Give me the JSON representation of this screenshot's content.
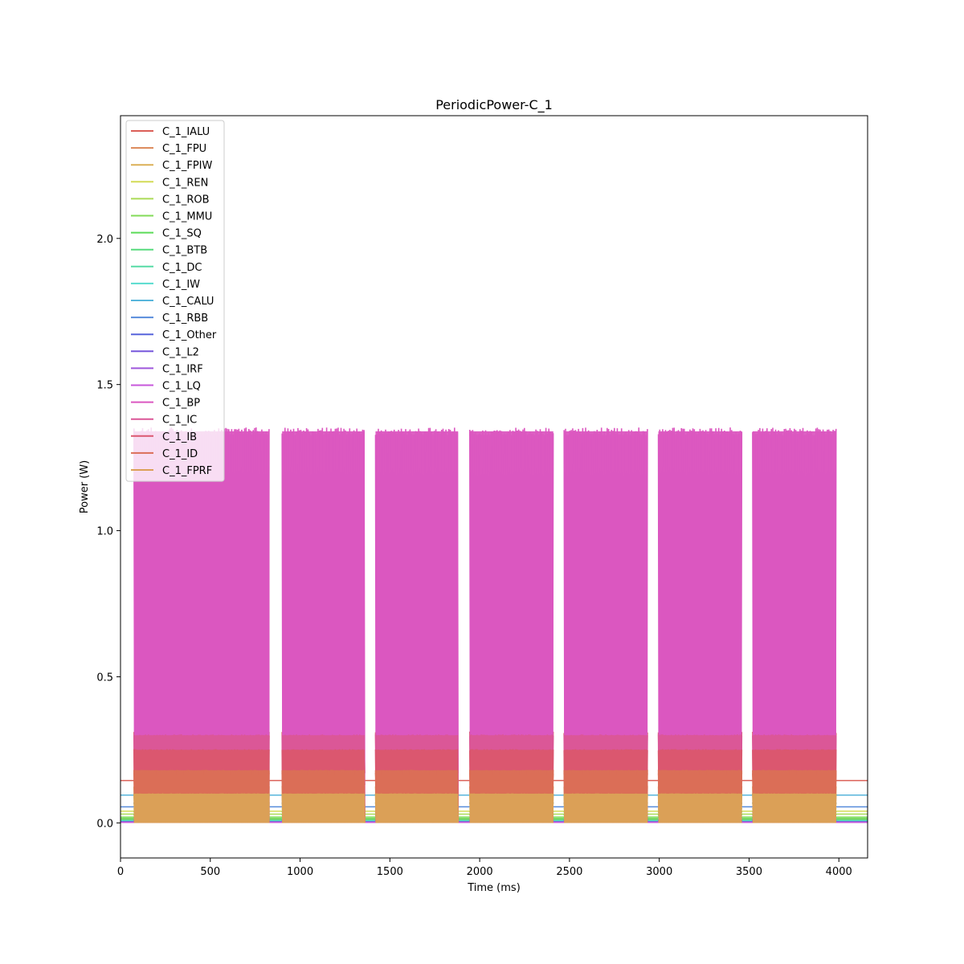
{
  "chart_data": {
    "type": "line",
    "title": "PeriodicPower-C_1",
    "xlabel": "Time (ms)",
    "ylabel": "Power (W)",
    "xlim": [
      0,
      4160
    ],
    "ylim": [
      -0.12,
      2.42
    ],
    "xticks": [
      0,
      500,
      1000,
      1500,
      2000,
      2500,
      3000,
      3500,
      4000
    ],
    "yticks": [
      0.0,
      0.5,
      1.0,
      1.5,
      2.0
    ],
    "grid": false,
    "legend_position": "upper-left",
    "active_intervals": [
      [
        75,
        830
      ],
      [
        900,
        1360
      ],
      [
        1420,
        1880
      ],
      [
        1945,
        2410
      ],
      [
        2470,
        2935
      ],
      [
        2995,
        3460
      ],
      [
        3520,
        3985
      ]
    ],
    "series": [
      {
        "name": "C_1_IALU",
        "color": "#db5f57",
        "idle": 0.145,
        "active_base": 0.17,
        "active_peak": 0.31
      },
      {
        "name": "C_1_FPU",
        "color": "#db8757",
        "idle": 0.005,
        "active_base": 0.13,
        "active_peak": 0.17
      },
      {
        "name": "C_1_FPIW",
        "color": "#dbb057",
        "idle": 0.012,
        "active_base": 0.03,
        "active_peak": 0.125
      },
      {
        "name": "C_1_REN",
        "color": "#d3db57",
        "idle": 0.04,
        "active_base": 0.05,
        "active_peak": 0.07
      },
      {
        "name": "C_1_ROB",
        "color": "#abdb57",
        "idle": 0.03,
        "active_base": 0.04,
        "active_peak": 0.05
      },
      {
        "name": "C_1_MMU",
        "color": "#82db57",
        "idle": 0.02,
        "active_base": 0.03,
        "active_peak": 0.04
      },
      {
        "name": "C_1_SQ",
        "color": "#5adb57",
        "idle": 0.015,
        "active_base": 0.02,
        "active_peak": 0.03
      },
      {
        "name": "C_1_BTB",
        "color": "#57db7d",
        "idle": 0.01,
        "active_base": 0.015,
        "active_peak": 0.02
      },
      {
        "name": "C_1_DC",
        "color": "#57dba5",
        "idle": 0.008,
        "active_base": 0.012,
        "active_peak": 0.018
      },
      {
        "name": "C_1_IW",
        "color": "#57dbce",
        "idle": 0.006,
        "active_base": 0.01,
        "active_peak": 0.015
      },
      {
        "name": "C_1_CALU",
        "color": "#57b5db",
        "idle": 0.095,
        "active_base": 0.09,
        "active_peak": 0.1
      },
      {
        "name": "C_1_RBB",
        "color": "#578cdb",
        "idle": 0.055,
        "active_base": 0.06,
        "active_peak": 0.07
      },
      {
        "name": "C_1_Other",
        "color": "#5764db",
        "idle": 0.004,
        "active_base": 0.008,
        "active_peak": 0.012
      },
      {
        "name": "C_1_L2",
        "color": "#7657db",
        "idle": 0.003,
        "active_base": 0.006,
        "active_peak": 0.01
      },
      {
        "name": "C_1_IRF",
        "color": "#9f57db",
        "idle": 0.002,
        "active_base": 0.004,
        "active_peak": 0.008
      },
      {
        "name": "C_1_LQ",
        "color": "#c757db",
        "idle": 0.002,
        "active_base": 0.003,
        "active_peak": 0.006
      },
      {
        "name": "C_1_BP",
        "color": "#db57c0",
        "idle": 0.0,
        "active_base": 0.0,
        "active_peak": 1.34
      },
      {
        "name": "C_1_IC",
        "color": "#db5797",
        "idle": 0.0,
        "active_base": 0.0,
        "active_peak": 0.3
      },
      {
        "name": "C_1_IB",
        "color": "#db576f",
        "idle": 0.0,
        "active_base": 0.0,
        "active_peak": 0.25
      },
      {
        "name": "C_1_ID",
        "color": "#db6e57",
        "idle": 0.0,
        "active_base": 0.0,
        "active_peak": 0.18
      },
      {
        "name": "C_1_FPRF",
        "color": "#dba057",
        "idle": 0.0,
        "active_base": 0.0,
        "active_peak": 0.1
      }
    ]
  }
}
